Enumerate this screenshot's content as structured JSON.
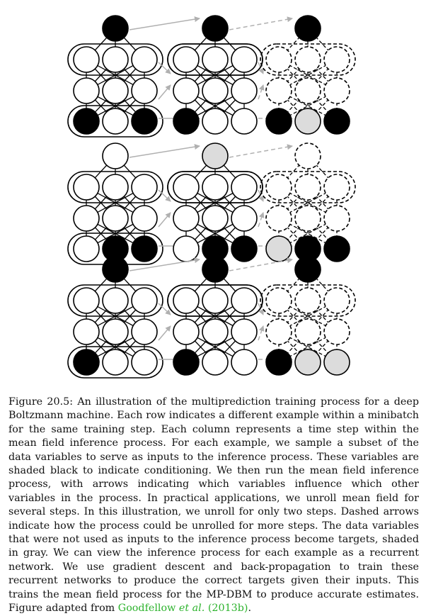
{
  "figure": {
    "rows": [
      {
        "columns": [
          {
            "top": "black",
            "hidden": "white",
            "visible": [
              "black",
              "white",
              "black"
            ],
            "style": "solid"
          },
          {
            "top": "black",
            "hidden": "white",
            "visible": [
              "black",
              "white",
              "white"
            ],
            "style": "solid"
          },
          {
            "top": "black",
            "hidden": "dashed",
            "visible": [
              "black",
              "gray",
              "black"
            ],
            "style": "dashed"
          }
        ]
      },
      {
        "columns": [
          {
            "top": "white",
            "hidden": "white",
            "visible": [
              "white",
              "black",
              "black"
            ],
            "style": "solid"
          },
          {
            "top": "gray",
            "hidden": "white",
            "visible": [
              "white",
              "black",
              "black"
            ],
            "style": "solid"
          },
          {
            "top": "dashed",
            "hidden": "dashed",
            "visible": [
              "gray",
              "black",
              "black"
            ],
            "style": "dashed"
          }
        ]
      },
      {
        "columns": [
          {
            "top": "black",
            "hidden": "white",
            "visible": [
              "black",
              "white",
              "white"
            ],
            "style": "solid"
          },
          {
            "top": "black",
            "hidden": "white",
            "visible": [
              "black",
              "white",
              "white"
            ],
            "style": "solid"
          },
          {
            "top": "black",
            "hidden": "dashed",
            "visible": [
              "black",
              "gray",
              "gray"
            ],
            "style": "dashed"
          }
        ]
      }
    ],
    "colors": {
      "black": "#000000",
      "gray": "#dcdcdc",
      "white": "#ffffff",
      "arrow": "#b0b0b0"
    }
  },
  "caption": {
    "label": "Figure 20.5:",
    "text": " An illustration of the multiprediction training process for a deep Boltzmann machine. Each row indicates a different example within a minibatch for the same training step. Each column represents a time step within the mean field inference process. For each example, we sample a subset of the data variables to serve as inputs to the inference process. These variables are shaded black to indicate conditioning. We then run the mean field inference process, with arrows indicating which variables influence which other variables in the process. In practical applications, we unroll mean field for several steps. In this illustration, we unroll for only two steps. Dashed arrows indicate how the process could be unrolled for more steps. The data variables that were not used as inputs to the inference process become targets, shaded in gray. We can view the inference process for each example as a recurrent network. We use gradient descent and back-propagation to train these recurrent networks to produce the correct targets given their inputs. This trains the mean field process for the MP-DBM to produce accurate estimates. Figure adapted from ",
    "citation_author": "Goodfellow",
    "citation_etal": "et al.",
    "citation_year": "(2013b)",
    "end": "."
  }
}
